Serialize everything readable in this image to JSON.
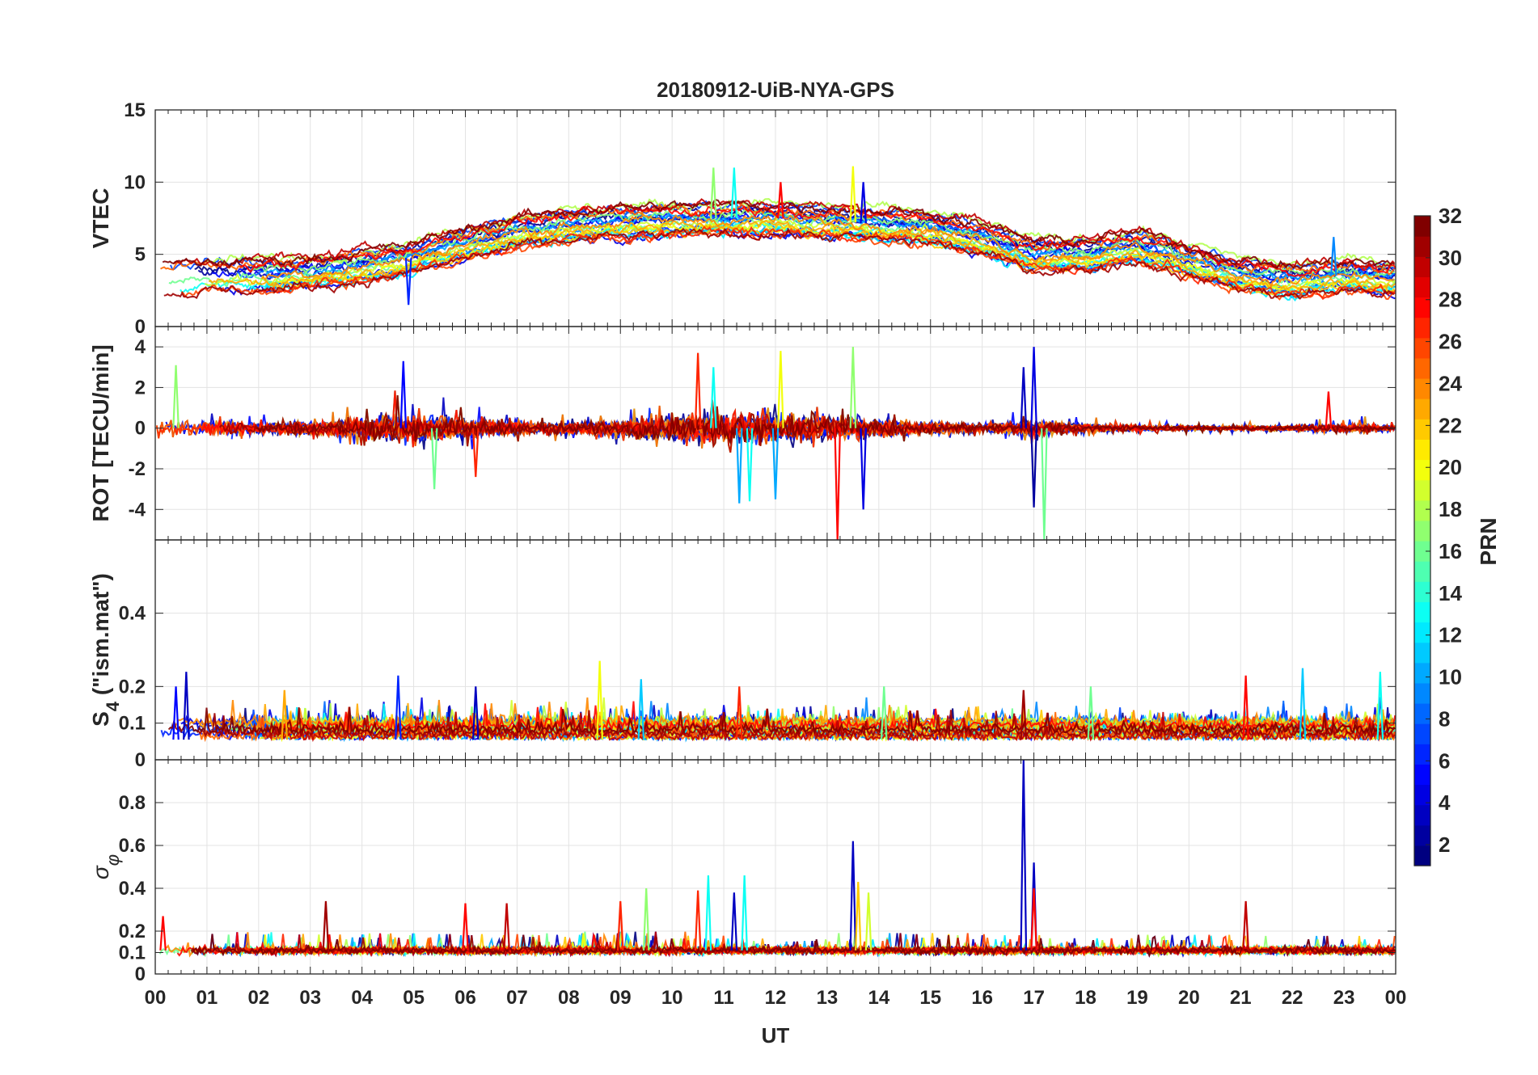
{
  "title": "20180912-UiB-NYA-GPS",
  "chart_data": [
    {
      "id": "vtec",
      "type": "line",
      "ylabel": "VTEC",
      "ylim": [
        0,
        15
      ],
      "yticks": [
        0,
        5,
        10,
        15
      ],
      "xlim": [
        0,
        24
      ],
      "baseline": [
        [
          0,
          3.3
        ],
        [
          1,
          3.5
        ],
        [
          2,
          3.6
        ],
        [
          3,
          3.8
        ],
        [
          4,
          4.2
        ],
        [
          5,
          4.8
        ],
        [
          6,
          5.8
        ],
        [
          7,
          6.6
        ],
        [
          8,
          7.0
        ],
        [
          9,
          7.3
        ],
        [
          10,
          7.4
        ],
        [
          11,
          7.5
        ],
        [
          12,
          7.5
        ],
        [
          13,
          7.3
        ],
        [
          14,
          7.1
        ],
        [
          15,
          6.9
        ],
        [
          16,
          6.1
        ],
        [
          17,
          5.0
        ],
        [
          18,
          5.0
        ],
        [
          19,
          5.6
        ],
        [
          20,
          4.6
        ],
        [
          21,
          3.7
        ],
        [
          22,
          3.2
        ],
        [
          23,
          3.6
        ],
        [
          24,
          3.3
        ]
      ],
      "spread": 1.1,
      "noise": 0.35,
      "spikes": [
        {
          "t": 10.8,
          "v": 11.0,
          "prn": 17
        },
        {
          "t": 11.2,
          "v": 11.0,
          "prn": 13
        },
        {
          "t": 12.1,
          "v": 10.0,
          "prn": 28
        },
        {
          "t": 13.5,
          "v": 11.1,
          "prn": 20
        },
        {
          "t": 13.7,
          "v": 10.0,
          "prn": 4
        },
        {
          "t": 4.9,
          "v": 1.5,
          "prn": 6
        },
        {
          "t": 22.8,
          "v": 6.2,
          "prn": 9
        }
      ]
    },
    {
      "id": "rot",
      "type": "line",
      "ylabel": "ROT [TECU/min]",
      "ylim": [
        -5.5,
        5
      ],
      "yticks": [
        -4,
        -2,
        0,
        2,
        4
      ],
      "xlim": [
        0,
        24
      ],
      "activity": [
        [
          0,
          0.6
        ],
        [
          1,
          0.5
        ],
        [
          2,
          0.4
        ],
        [
          3,
          0.45
        ],
        [
          4,
          0.7
        ],
        [
          5,
          0.9
        ],
        [
          6,
          0.7
        ],
        [
          7,
          0.4
        ],
        [
          8,
          0.4
        ],
        [
          9,
          0.5
        ],
        [
          10,
          0.9
        ],
        [
          11,
          1.1
        ],
        [
          12,
          0.9
        ],
        [
          13,
          0.8
        ],
        [
          14,
          0.6
        ],
        [
          15,
          0.4
        ],
        [
          16,
          0.3
        ],
        [
          17,
          0.5
        ],
        [
          18,
          0.3
        ],
        [
          19,
          0.2
        ],
        [
          20,
          0.15
        ],
        [
          21,
          0.15
        ],
        [
          22,
          0.2
        ],
        [
          23,
          0.3
        ],
        [
          24,
          0.2
        ]
      ],
      "spikes": [
        {
          "t": 0.4,
          "v": 3.1,
          "prn": 17
        },
        {
          "t": 4.8,
          "v": 3.3,
          "prn": 5
        },
        {
          "t": 5.4,
          "v": -3.0,
          "prn": 16
        },
        {
          "t": 6.2,
          "v": -2.4,
          "prn": 27
        },
        {
          "t": 10.5,
          "v": 3.7,
          "prn": 27
        },
        {
          "t": 10.8,
          "v": 3.0,
          "prn": 13
        },
        {
          "t": 11.3,
          "v": -3.7,
          "prn": 10
        },
        {
          "t": 11.5,
          "v": -3.6,
          "prn": 13
        },
        {
          "t": 12.1,
          "v": 3.8,
          "prn": 20
        },
        {
          "t": 12.0,
          "v": -3.5,
          "prn": 10
        },
        {
          "t": 13.2,
          "v": -5.5,
          "prn": 28
        },
        {
          "t": 13.5,
          "v": 4.0,
          "prn": 17
        },
        {
          "t": 13.7,
          "v": -4.0,
          "prn": 4
        },
        {
          "t": 16.8,
          "v": 3.0,
          "prn": 3
        },
        {
          "t": 17.0,
          "v": 4.0,
          "prn": 4
        },
        {
          "t": 17.0,
          "v": -3.9,
          "prn": 2
        },
        {
          "t": 17.2,
          "v": -5.5,
          "prn": 16
        },
        {
          "t": 22.7,
          "v": 1.8,
          "prn": 28
        }
      ]
    },
    {
      "id": "s4",
      "type": "line",
      "ylabel": "S4 (\"ism.mat\")",
      "ylabel_main": "S",
      "ylabel_sub": "4",
      "ylabel_rest": " (\"ism.mat\")",
      "ylim": [
        0,
        0.6
      ],
      "yticks": [
        0.1,
        0.2,
        0.4
      ],
      "extra_ytick": "0",
      "xlim": [
        0,
        24
      ],
      "floor": 0.055,
      "spikes": [
        {
          "t": 0.6,
          "v": 0.24,
          "prn": 3
        },
        {
          "t": 0.4,
          "v": 0.2,
          "prn": 5
        },
        {
          "t": 2.5,
          "v": 0.19,
          "prn": 23
        },
        {
          "t": 4.7,
          "v": 0.23,
          "prn": 6
        },
        {
          "t": 6.2,
          "v": 0.2,
          "prn": 3
        },
        {
          "t": 8.6,
          "v": 0.27,
          "prn": 20
        },
        {
          "t": 9.4,
          "v": 0.22,
          "prn": 11
        },
        {
          "t": 11.3,
          "v": 0.2,
          "prn": 27
        },
        {
          "t": 14.1,
          "v": 0.2,
          "prn": 16
        },
        {
          "t": 16.8,
          "v": 0.19,
          "prn": 31
        },
        {
          "t": 18.1,
          "v": 0.2,
          "prn": 16
        },
        {
          "t": 21.1,
          "v": 0.23,
          "prn": 28
        },
        {
          "t": 22.2,
          "v": 0.25,
          "prn": 11
        },
        {
          "t": 23.7,
          "v": 0.24,
          "prn": 13
        }
      ]
    },
    {
      "id": "sigphi",
      "type": "line",
      "ylabel": "σφ",
      "ylabel_main": "σ",
      "ylabel_sub": "φ",
      "ylim": [
        0,
        1
      ],
      "yticks": [
        0,
        0.1,
        0.2,
        0.4,
        0.6,
        0.8
      ],
      "xlim": [
        0,
        24
      ],
      "floor": 0.11,
      "spikes": [
        {
          "t": 0.15,
          "v": 0.27,
          "prn": 28
        },
        {
          "t": 3.3,
          "v": 0.34,
          "prn": 31
        },
        {
          "t": 6.0,
          "v": 0.33,
          "prn": 28
        },
        {
          "t": 6.8,
          "v": 0.33,
          "prn": 30
        },
        {
          "t": 9.0,
          "v": 0.34,
          "prn": 27
        },
        {
          "t": 9.5,
          "v": 0.4,
          "prn": 17
        },
        {
          "t": 10.5,
          "v": 0.39,
          "prn": 27
        },
        {
          "t": 10.7,
          "v": 0.46,
          "prn": 13
        },
        {
          "t": 11.2,
          "v": 0.38,
          "prn": 3
        },
        {
          "t": 11.4,
          "v": 0.46,
          "prn": 13
        },
        {
          "t": 13.5,
          "v": 0.62,
          "prn": 3
        },
        {
          "t": 13.6,
          "v": 0.43,
          "prn": 22
        },
        {
          "t": 13.8,
          "v": 0.38,
          "prn": 19
        },
        {
          "t": 16.8,
          "v": 1.0,
          "prn": 3
        },
        {
          "t": 17.0,
          "v": 0.52,
          "prn": 3
        },
        {
          "t": 17.0,
          "v": 0.4,
          "prn": 28
        },
        {
          "t": 21.1,
          "v": 0.34,
          "prn": 30
        }
      ]
    }
  ],
  "xaxis": {
    "label": "UT",
    "ticks": [
      "00",
      "01",
      "02",
      "03",
      "04",
      "05",
      "06",
      "07",
      "08",
      "09",
      "10",
      "11",
      "12",
      "13",
      "14",
      "15",
      "16",
      "17",
      "18",
      "19",
      "20",
      "21",
      "22",
      "23",
      "00"
    ]
  },
  "colorbar": {
    "label": "PRN",
    "colormap": "jet",
    "range": [
      1,
      32
    ],
    "ticks": [
      "2",
      "4",
      "6",
      "8",
      "10",
      "12",
      "14",
      "16",
      "18",
      "20",
      "22",
      "24",
      "26",
      "28",
      "30",
      "32"
    ]
  }
}
